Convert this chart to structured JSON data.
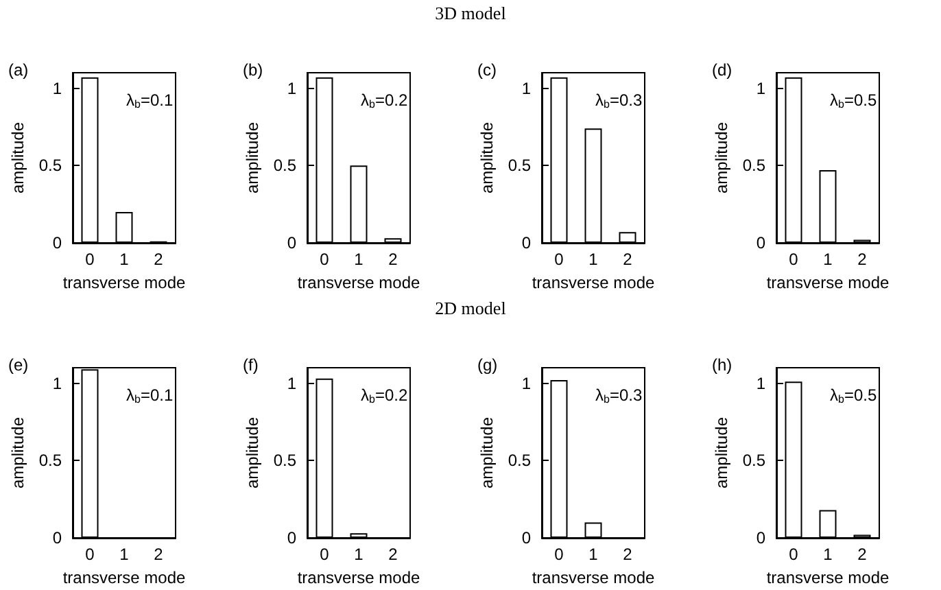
{
  "chart_data": [
    {
      "type": "bar",
      "title": "(a)",
      "annotations": [
        "3D model",
        "λ$_{b}$=0.1"
      ],
      "xlabel": "transverse mode",
      "ylabel": "amplitude",
      "categories": [
        "0",
        "1",
        "2"
      ],
      "values": [
        1.07,
        0.2,
        0.01
      ],
      "ylim": [
        0,
        1.1
      ],
      "yticks": [
        0,
        0.5,
        1
      ]
    },
    {
      "type": "bar",
      "title": "(b)",
      "annotations": [
        "λ$_{b}$=0.2"
      ],
      "xlabel": "transverse mode",
      "ylabel": "amplitude",
      "categories": [
        "0",
        "1",
        "2"
      ],
      "values": [
        1.07,
        0.5,
        0.03
      ],
      "ylim": [
        0,
        1.1
      ],
      "yticks": [
        0,
        0.5,
        1
      ]
    },
    {
      "type": "bar",
      "title": "(c)",
      "annotations": [
        "λ$_{b}$=0.3"
      ],
      "xlabel": "transverse mode",
      "ylabel": "amplitude",
      "categories": [
        "0",
        "1",
        "2"
      ],
      "values": [
        1.07,
        0.74,
        0.07
      ],
      "ylim": [
        0,
        1.1
      ],
      "yticks": [
        0,
        0.5,
        1
      ]
    },
    {
      "type": "bar",
      "title": "(d)",
      "annotations": [
        "λ$_{b}$=0.5"
      ],
      "xlabel": "transverse mode",
      "ylabel": "amplitude",
      "categories": [
        "0",
        "1",
        "2"
      ],
      "values": [
        1.07,
        0.47,
        0.02
      ],
      "ylim": [
        0,
        1.1
      ],
      "yticks": [
        0,
        0.5,
        1
      ]
    },
    {
      "type": "bar",
      "title": "(e)",
      "annotations": [
        "2D model",
        "λ$_{b}$=0.1"
      ],
      "xlabel": "transverse mode",
      "ylabel": "amplitude",
      "categories": [
        "0",
        "1",
        "2"
      ],
      "values": [
        1.09,
        0,
        0
      ],
      "ylim": [
        0,
        1.1
      ],
      "yticks": [
        0,
        0.5,
        1
      ]
    },
    {
      "type": "bar",
      "title": "(f)",
      "annotations": [
        "λ$_{b}$=0.2"
      ],
      "xlabel": "transverse mode",
      "ylabel": "amplitude",
      "categories": [
        "0",
        "1",
        "2"
      ],
      "values": [
        1.03,
        0.03,
        0
      ],
      "ylim": [
        0,
        1.1
      ],
      "yticks": [
        0,
        0.5,
        1
      ]
    },
    {
      "type": "bar",
      "title": "(g)",
      "annotations": [
        "λ$_{b}$=0.3"
      ],
      "xlabel": "transverse mode",
      "ylabel": "amplitude",
      "categories": [
        "0",
        "1",
        "2"
      ],
      "values": [
        1.02,
        0.1,
        0
      ],
      "ylim": [
        0,
        1.1
      ],
      "yticks": [
        0,
        0.5,
        1
      ]
    },
    {
      "type": "bar",
      "title": "(h)",
      "annotations": [
        "λ$_{b}$=0.5"
      ],
      "xlabel": "transverse mode",
      "ylabel": "amplitude",
      "categories": [
        "0",
        "1",
        "2"
      ],
      "values": [
        1.01,
        0.18,
        0.02
      ],
      "ylim": [
        0,
        1.1
      ],
      "yticks": [
        0,
        0.5,
        1
      ]
    }
  ]
}
